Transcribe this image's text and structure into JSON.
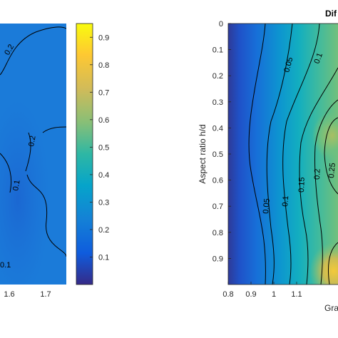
{
  "chart_data": [
    {
      "type": "heatmap",
      "panel": "left (cropped)",
      "x_tick_labels": [
        "1.6",
        "1.7"
      ],
      "contour_labels": [
        "0.2",
        "0.2",
        "0.1",
        "0.1"
      ],
      "colorbar": {
        "range": [
          0,
          0.95
        ],
        "tick_labels": [
          "0.1",
          "0.2",
          "0.3",
          "0.4",
          "0.5",
          "0.6",
          "0.7",
          "0.8",
          "0.9"
        ],
        "tick_values": [
          0.1,
          0.2,
          0.3,
          0.4,
          0.5,
          0.6,
          0.7,
          0.8,
          0.9
        ]
      }
    },
    {
      "type": "heatmap",
      "panel": "right (cropped)",
      "title": "Dif",
      "xlabel": "Gra",
      "ylabel": "Aspect ratio h/d",
      "xlim": [
        0.8,
        1.3
      ],
      "ylim": [
        0,
        1
      ],
      "x_ticks": [
        0.8,
        0.9,
        1,
        1.1
      ],
      "x_tick_labels": [
        "0.8",
        "0.9",
        "1",
        "1.1"
      ],
      "y_ticks": [
        0,
        0.1,
        0.2,
        0.3,
        0.4,
        0.5,
        0.6,
        0.7,
        0.8,
        0.9
      ],
      "y_tick_labels": [
        "0",
        "0.1",
        "0.2",
        "0.3",
        "0.4",
        "0.5",
        "0.6",
        "0.7",
        "0.8",
        "0.9"
      ],
      "contour_levels": [
        0.05,
        0.1,
        0.15,
        0.2,
        0.25
      ],
      "contour_labels": [
        "0.05",
        "0.05",
        "0.1",
        "0.15",
        "0.2",
        "0.25",
        "0.1"
      ]
    }
  ]
}
